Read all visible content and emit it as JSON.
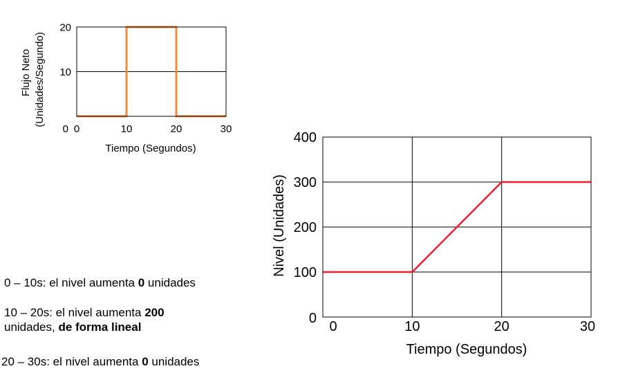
{
  "chart_data": [
    {
      "type": "line",
      "title": "",
      "xlabel": "Tiempo (Segundos)",
      "ylabel": "Flujo Neto (Unidades/Segundo)",
      "ylabel_line1": "Flujo Neto",
      "ylabel_line2": "(Unidades/Segundo)",
      "xlim": [
        0,
        30
      ],
      "ylim": [
        0,
        20
      ],
      "x_ticks": [
        "0",
        "10",
        "20",
        "30"
      ],
      "y_ticks": [
        "0",
        "10",
        "20"
      ],
      "grid": true,
      "series": [
        {
          "name": "Flujo Neto",
          "color": "#f08a3c",
          "x": [
            0,
            10,
            10,
            20,
            20,
            30
          ],
          "y": [
            0,
            0,
            20,
            20,
            0,
            0
          ]
        }
      ]
    },
    {
      "type": "line",
      "title": "",
      "xlabel": "Tiempo (Segundos)",
      "ylabel": "Nivel (Unidades)",
      "xlim": [
        0,
        30
      ],
      "ylim": [
        0,
        400
      ],
      "x_ticks": [
        "0",
        "10",
        "20",
        "30"
      ],
      "y_ticks": [
        "0",
        "100",
        "200",
        "300",
        "400"
      ],
      "grid": true,
      "series": [
        {
          "name": "Nivel",
          "color": "#ee1c2e",
          "x": [
            0,
            10,
            20,
            30
          ],
          "y": [
            100,
            100,
            300,
            300
          ]
        }
      ]
    }
  ],
  "notes": [
    {
      "a": "0 – 10s: el nivel aumenta ",
      "b": "0",
      "c": " unidades"
    },
    {
      "a": "10 – 20s: el nivel aumenta ",
      "b": "200",
      "c": " unidades, ",
      "d": "de forma lineal"
    },
    {
      "a": "20 – 30s: el nivel aumenta ",
      "b": "0",
      "c": " unidades"
    }
  ]
}
